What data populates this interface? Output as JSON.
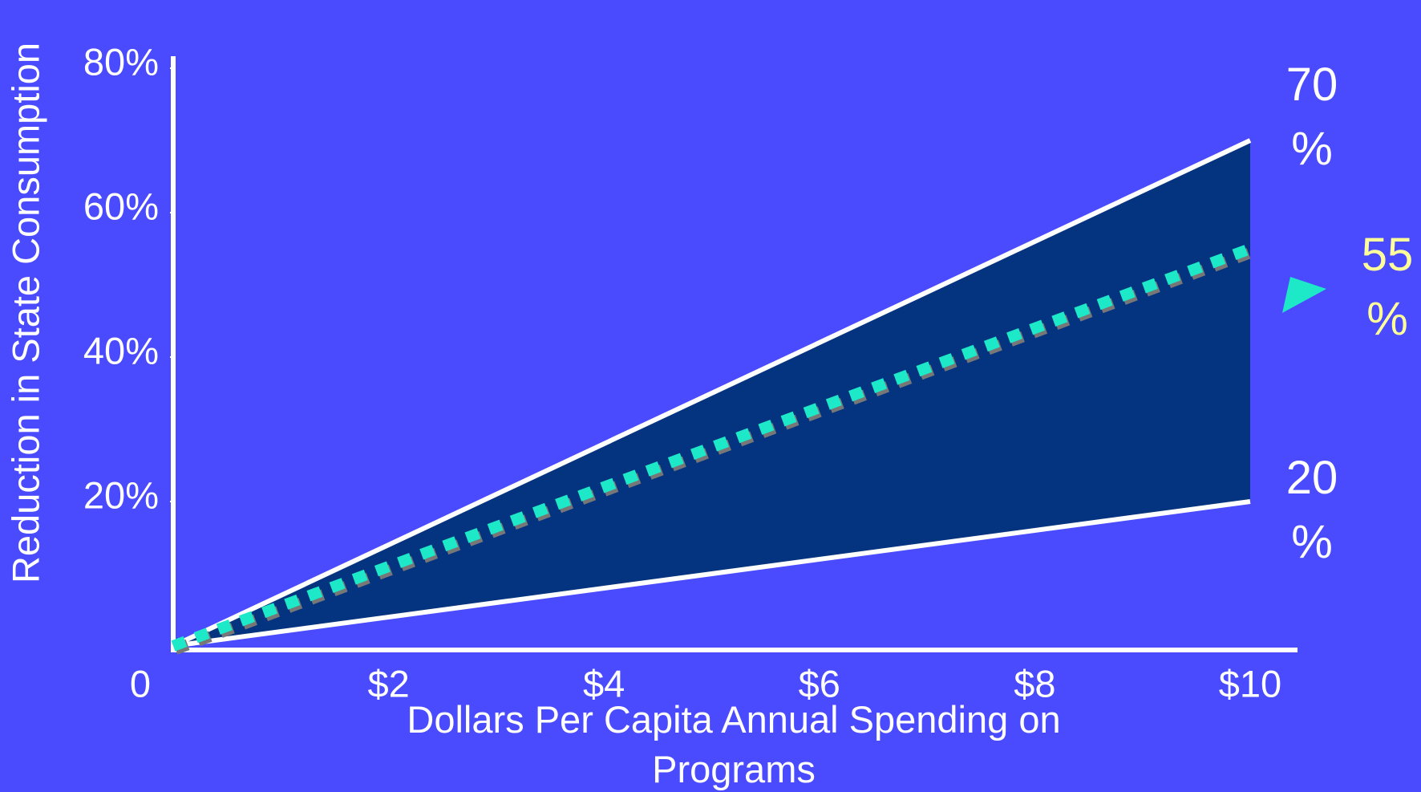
{
  "chart_data": {
    "type": "line",
    "y_label": "Reduction in State Consumption",
    "x_label": "Dollars Per Capita Annual Spending on Programs",
    "x": [
      0,
      10
    ],
    "series": [
      {
        "color": "#ffffff",
        "values": [
          0,
          70
        ],
        "value_labels": [
          null,
          "70%"
        ],
        "label_color": "#ffffff"
      },
      {
        "color": "#ffffff",
        "values": [
          0,
          20
        ],
        "value_labels": [
          null,
          "20%"
        ],
        "label_color": "#ffffff"
      },
      {
        "color": "#1de9c8",
        "values": [
          0,
          55
        ],
        "value_labels": [
          null,
          "55%"
        ],
        "label_color": "#ffff99",
        "dashed": true
      }
    ],
    "band_color": "#04337f",
    "xlim": [
      0,
      10
    ],
    "xticks": [
      0,
      {
        "value": 2,
        "label": "$2"
      },
      {
        "value": 4,
        "label": "$4"
      },
      {
        "value": 6,
        "label": "$6"
      },
      {
        "value": 8,
        "label": "$8"
      },
      {
        "value": 10,
        "label": "$10"
      }
    ],
    "ylim": [
      0,
      80
    ],
    "yticks": [
      {
        "value": 20,
        "label": "20%"
      },
      {
        "value": 40,
        "label": "40%"
      },
      {
        "value": 60,
        "label": "60%"
      },
      {
        "value": 80,
        "label": "80%"
      }
    ]
  }
}
